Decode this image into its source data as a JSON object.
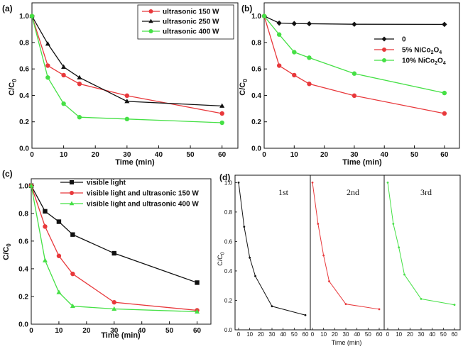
{
  "chart_data": [
    {
      "id": "a",
      "panel_label": "(a)",
      "type": "line",
      "xlabel": "Time (min)",
      "ylabel": "C/C0",
      "xlim": [
        0,
        65
      ],
      "ylim": [
        0.0,
        1.1
      ],
      "xticks": [
        0,
        10,
        20,
        30,
        40,
        50,
        60
      ],
      "yticks": [
        0.0,
        0.2,
        0.4,
        0.6,
        0.8,
        1.0
      ],
      "legend_position": "top-right",
      "series": [
        {
          "name": "ultrasonic 150 W",
          "color": "#e8383b",
          "marker": "circle",
          "x": [
            0,
            5,
            10,
            15,
            30,
            60
          ],
          "values": [
            1.0,
            0.625,
            0.553,
            0.487,
            0.398,
            0.263
          ]
        },
        {
          "name": "ultrasonic 250 W",
          "color": "#111111",
          "marker": "triangle",
          "x": [
            0,
            5,
            10,
            15,
            30,
            60
          ],
          "values": [
            1.0,
            0.79,
            0.615,
            0.535,
            0.355,
            0.32
          ]
        },
        {
          "name": "ultrasonic 400 W",
          "color": "#45e045",
          "marker": "circle",
          "x": [
            0,
            5,
            10,
            15,
            30,
            60
          ],
          "values": [
            1.0,
            0.535,
            0.337,
            0.235,
            0.221,
            0.193
          ]
        }
      ]
    },
    {
      "id": "b",
      "panel_label": "(b)",
      "type": "line",
      "xlabel": "Time (min)",
      "ylabel": "C/C0",
      "xlim": [
        0,
        65
      ],
      "ylim": [
        0.0,
        1.1
      ],
      "xticks": [
        0,
        10,
        20,
        30,
        40,
        50,
        60
      ],
      "yticks": [
        0.0,
        0.2,
        0.4,
        0.6,
        0.8,
        1.0
      ],
      "legend_position": "right",
      "series": [
        {
          "name": "0",
          "color": "#111111",
          "marker": "diamond",
          "x": [
            0,
            5,
            10,
            15,
            30,
            60
          ],
          "values": [
            1.0,
            0.947,
            0.943,
            0.942,
            0.938,
            0.937
          ]
        },
        {
          "name": "5% NiCo2O4",
          "color": "#e8383b",
          "marker": "circle",
          "x": [
            0,
            5,
            10,
            15,
            30,
            60
          ],
          "values": [
            1.0,
            0.625,
            0.553,
            0.487,
            0.398,
            0.263
          ]
        },
        {
          "name": "10% NiCo2O4",
          "color": "#45e045",
          "marker": "circle",
          "x": [
            0,
            5,
            10,
            15,
            30,
            60
          ],
          "values": [
            1.0,
            0.86,
            0.727,
            0.685,
            0.565,
            0.418
          ]
        }
      ]
    },
    {
      "id": "c",
      "panel_label": "(c)",
      "type": "line",
      "xlabel": "Time (min)",
      "ylabel": "C/C0",
      "xlim": [
        0,
        65
      ],
      "ylim": [
        0.0,
        1.05
      ],
      "xticks": [
        0,
        10,
        20,
        30,
        40,
        50,
        60
      ],
      "yticks": [
        0.0,
        0.2,
        0.4,
        0.6,
        0.8,
        1.0
      ],
      "legend_position": "top-left",
      "series": [
        {
          "name": "visible light",
          "color": "#111111",
          "marker": "square",
          "x": [
            0,
            5,
            10,
            15,
            30,
            60
          ],
          "values": [
            1.0,
            0.815,
            0.74,
            0.647,
            0.512,
            0.3
          ]
        },
        {
          "name": "visible light and ultrasonic 150 W",
          "color": "#e8383b",
          "marker": "circle",
          "x": [
            0,
            5,
            10,
            15,
            30,
            60
          ],
          "values": [
            1.0,
            0.705,
            0.493,
            0.363,
            0.158,
            0.1
          ]
        },
        {
          "name": "visible light and ultrasonic 400 W",
          "color": "#45e045",
          "marker": "triangle",
          "x": [
            0,
            5,
            10,
            15,
            30,
            60
          ],
          "values": [
            1.0,
            0.46,
            0.23,
            0.13,
            0.11,
            0.09
          ]
        }
      ]
    },
    {
      "id": "d",
      "panel_label": "(d)",
      "type": "line",
      "xlabel": "Time (min)",
      "ylabel": "C/C0",
      "ylim": [
        0.0,
        1.05
      ],
      "yticks": [
        0.0,
        0.2,
        0.4,
        0.6,
        0.8,
        1.0
      ],
      "runs": [
        {
          "label": "1st",
          "color": "#111111",
          "xticks": [
            0,
            10,
            20,
            30,
            40,
            50,
            60
          ],
          "x": [
            0,
            5,
            10,
            15,
            30,
            60
          ],
          "values": [
            1.0,
            0.7,
            0.49,
            0.365,
            0.16,
            0.1
          ]
        },
        {
          "label": "2nd",
          "color": "#e8383b",
          "xticks": [
            0,
            10,
            20,
            30,
            40,
            50,
            60
          ],
          "x": [
            0,
            5,
            10,
            15,
            30,
            60
          ],
          "values": [
            1.0,
            0.72,
            0.505,
            0.33,
            0.175,
            0.14
          ]
        },
        {
          "label": "3rd",
          "color": "#45e045",
          "xticks": [
            0,
            10,
            20,
            30,
            40,
            50,
            60
          ],
          "x": [
            0,
            5,
            10,
            15,
            30,
            60
          ],
          "values": [
            1.0,
            0.72,
            0.56,
            0.375,
            0.21,
            0.17
          ]
        }
      ]
    }
  ]
}
